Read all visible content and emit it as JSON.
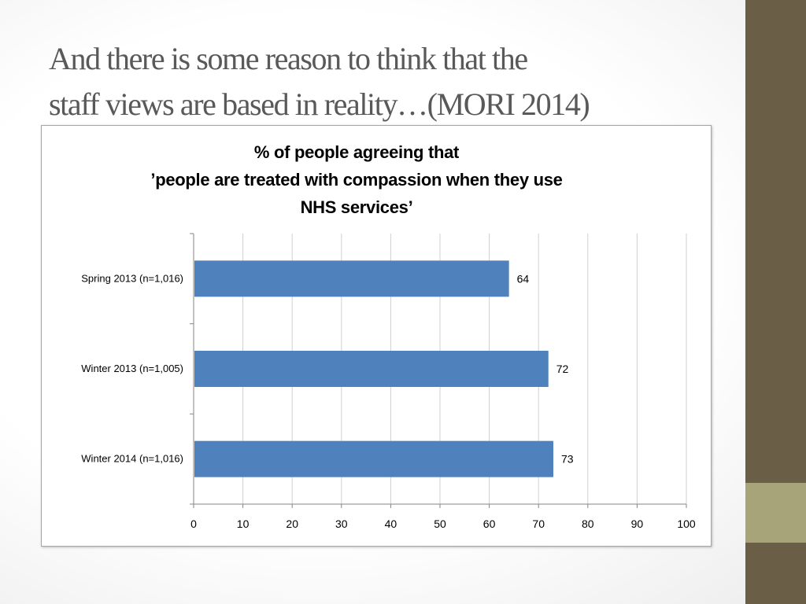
{
  "slide": {
    "title_line1": "And there is some reason to think that the",
    "title_line2": "staff views are based in reality…(MORI 2014)"
  },
  "theme": {
    "sidebar_color": "#6b5e46",
    "sidebar_accent_color": "#a7a47a",
    "bar_color": "#4f81bd"
  },
  "chart_data": {
    "type": "bar",
    "orientation": "horizontal",
    "title": [
      "% of people agreeing that",
      "’people are treated with compassion when they use",
      "NHS services’"
    ],
    "categories": [
      "Spring 2013  (n=1,016)",
      "Winter 2013 (n=1,005)",
      "Winter 2014 (n=1,016)"
    ],
    "values": [
      64,
      72,
      73
    ],
    "data_labels": [
      "64",
      "72",
      "73"
    ],
    "xlim": [
      0,
      100
    ],
    "xticks": [
      0,
      10,
      20,
      30,
      40,
      50,
      60,
      70,
      80,
      90,
      100
    ],
    "grid": true,
    "legend": "none",
    "xlabel": "",
    "ylabel": ""
  }
}
